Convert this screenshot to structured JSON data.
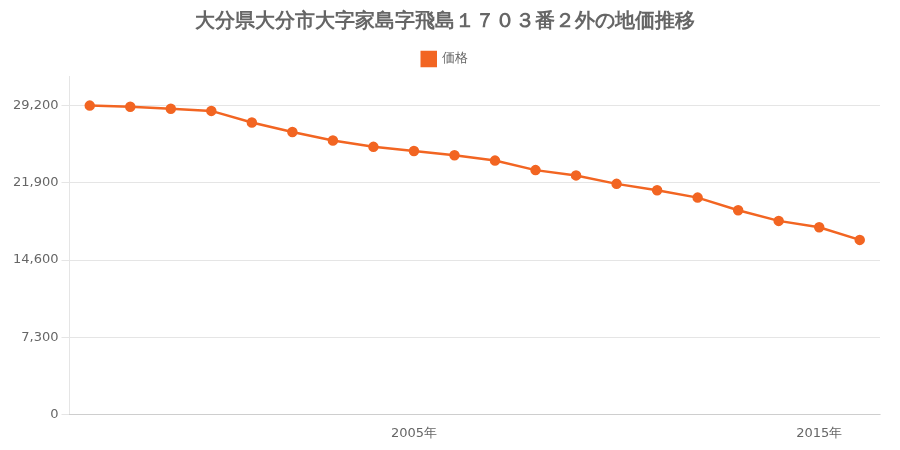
{
  "chart_data": {
    "type": "line",
    "title": "大分県大分市大字家島字飛島１７０３番２外の地価推移",
    "series": [
      {
        "name": "価格",
        "color": "#f26522",
        "marker": "circle",
        "line_style": "solid",
        "values": [
          29200,
          29100,
          28900,
          28700,
          27600,
          26700,
          25900,
          25300,
          24900,
          24500,
          24000,
          23100,
          22600,
          21800,
          21200,
          20500,
          19300,
          18300,
          17700,
          16500
        ]
      }
    ],
    "x": [
      1997,
      1998,
      1999,
      2000,
      2001,
      2002,
      2003,
      2004,
      2005,
      2006,
      2007,
      2008,
      2009,
      2010,
      2011,
      2012,
      2013,
      2014,
      2015,
      2016
    ],
    "xlim": [
      1996.5,
      2016.5
    ],
    "xticks": [
      {
        "value": 2005,
        "label": "2005年"
      },
      {
        "value": 2015,
        "label": "2015年"
      }
    ],
    "ylim": [
      0,
      32000
    ],
    "yticks": [
      0,
      {
        "value": 7300,
        "label": "7,300"
      },
      {
        "value": 14600,
        "label": "14,600"
      },
      {
        "value": 21900,
        "label": "21,900"
      },
      {
        "value": 29200,
        "label": "29,200"
      }
    ],
    "grid": "y",
    "legend": "top"
  }
}
